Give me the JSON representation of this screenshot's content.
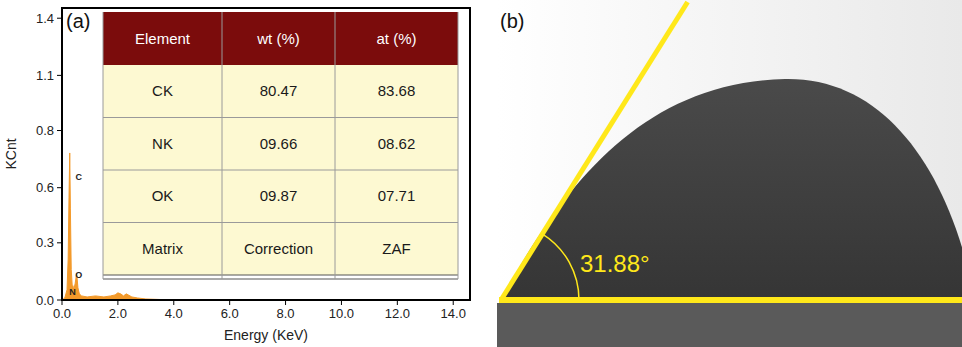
{
  "chart_data": {
    "type": "area",
    "panel_label": "(a)",
    "x_label": "Energy (KeV)",
    "y_label": "KCnt",
    "xlim": [
      0,
      14.6
    ],
    "xticks": [
      {
        "value": 0,
        "label": "0.0"
      },
      {
        "value": 2,
        "label": "2.0"
      },
      {
        "value": 4,
        "label": "4.0"
      },
      {
        "value": 6,
        "label": "6.0"
      },
      {
        "value": 8,
        "label": "8.0"
      },
      {
        "value": 10,
        "label": "10.0"
      },
      {
        "value": 12,
        "label": "12.0"
      },
      {
        "value": 14,
        "label": "14.0"
      }
    ],
    "ylim": [
      0,
      1.43
    ],
    "yticks": [
      {
        "value": 0,
        "label": "0.0"
      },
      {
        "value": 0.28,
        "label": "0.3"
      },
      {
        "value": 0.55,
        "label": "0.6"
      },
      {
        "value": 0.83,
        "label": "0.8"
      },
      {
        "value": 1.1,
        "label": "1.1"
      },
      {
        "value": 1.38,
        "label": "1.4"
      }
    ],
    "x": [
      0,
      0.1,
      0.18,
      0.22,
      0.25,
      0.277,
      0.3,
      0.33,
      0.37,
      0.39,
      0.42,
      0.47,
      0.525,
      0.57,
      0.62,
      0.7,
      0.9,
      1.2,
      1.5,
      1.74,
      1.9,
      2.0,
      2.1,
      2.2,
      2.3,
      2.5,
      2.7,
      3.0,
      4.0,
      14.5
    ],
    "values": [
      0,
      0.01,
      0.05,
      0.2,
      0.5,
      0.72,
      0.45,
      0.15,
      0.06,
      0.07,
      0.05,
      0.08,
      0.13,
      0.06,
      0.03,
      0.02,
      0.015,
      0.02,
      0.015,
      0.02,
      0.025,
      0.035,
      0.03,
      0.02,
      0.03,
      0.015,
      0.01,
      0.005,
      0,
      0
    ],
    "color": "#f39a2b",
    "annotations": [
      {
        "text": "C",
        "x": 0.6,
        "y": 0.6
      },
      {
        "text": "O",
        "x": 0.6,
        "y": 0.12
      },
      {
        "text": "N",
        "x": 0.38,
        "y": 0.04
      }
    ],
    "table": {
      "header": [
        "Element",
        "wt (%)",
        "at (%)"
      ],
      "rows": [
        [
          "CK",
          "80.47",
          "83.68"
        ],
        [
          "NK",
          "09.66",
          "08.62"
        ],
        [
          "OK",
          "09.87",
          "07.71"
        ],
        [
          "Matrix",
          "Correction",
          "ZAF"
        ]
      ]
    }
  },
  "contact_angle": {
    "panel_label": "(b)",
    "angle": 31.88,
    "angle_label": "31.88°",
    "color": "#ffe81a"
  }
}
